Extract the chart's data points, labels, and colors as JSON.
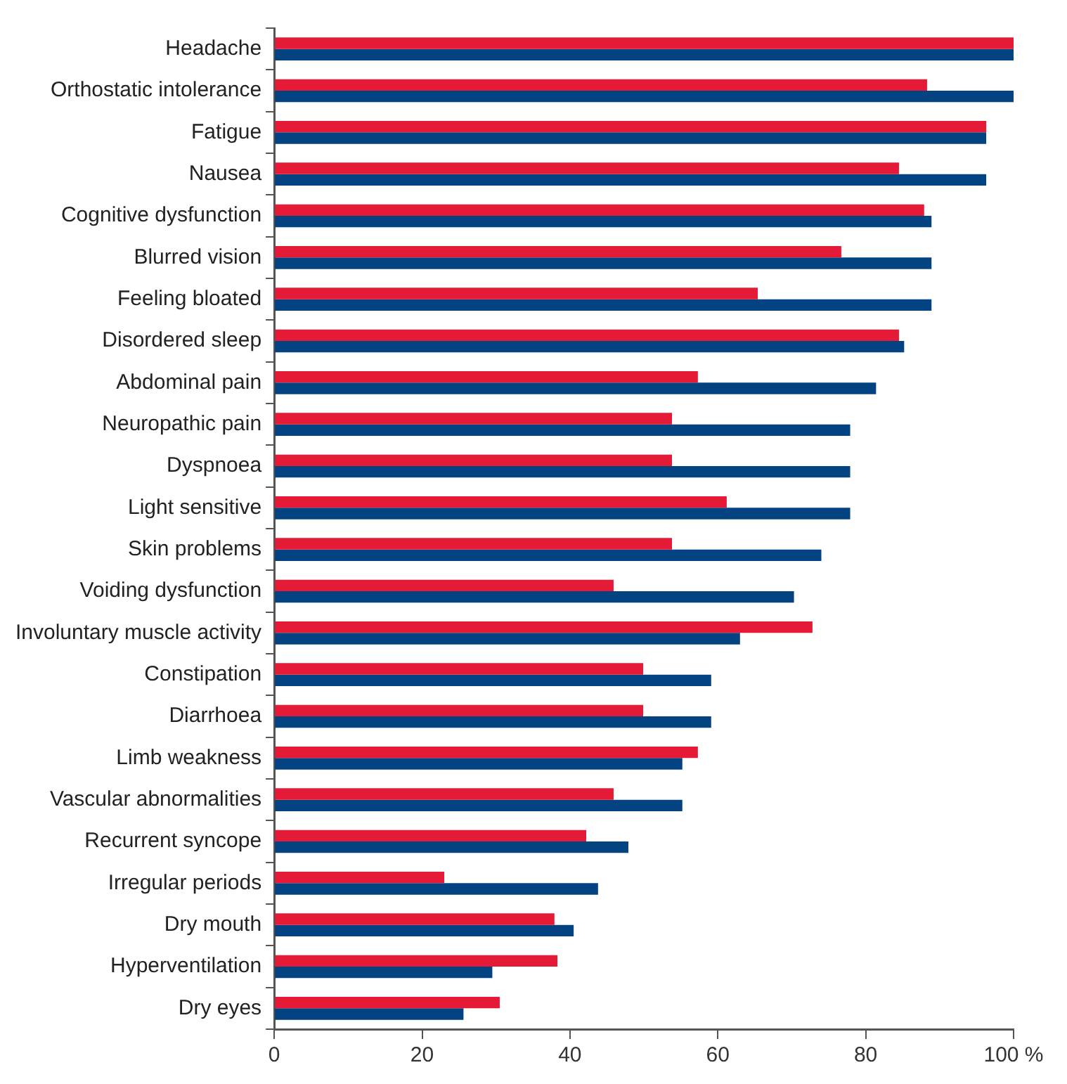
{
  "chart_data": {
    "type": "bar",
    "orientation": "horizontal",
    "categories": [
      "Headache",
      "Orthostatic intolerance",
      "Fatigue",
      "Nausea",
      "Cognitive dysfunction",
      "Blurred vision",
      "Feeling bloated",
      "Disordered sleep",
      "Abdominal pain",
      "Neuropathic pain",
      "Dyspnoea",
      "Light sensitive",
      "Skin problems",
      "Voiding dysfunction",
      "Involuntary muscle activity",
      "Constipation",
      "Diarrhoea",
      "Limb weakness",
      "Vascular abnormalities",
      "Recurrent syncope",
      "Irregular periods",
      "Dry mouth",
      "Hyperventilation",
      "Dry eyes"
    ],
    "series": [
      {
        "color": "#e41a36",
        "values": [
          100,
          88.3,
          96.3,
          84.5,
          87.9,
          76.7,
          65.4,
          84.5,
          57.3,
          53.8,
          53.8,
          61.2,
          53.8,
          45.9,
          72.8,
          49.9,
          49.9,
          57.3,
          45.9,
          42.2,
          23.0,
          37.9,
          38.3,
          30.5
        ]
      },
      {
        "color": "#034382",
        "values": [
          100,
          100,
          96.3,
          96.3,
          88.9,
          88.9,
          88.9,
          85.2,
          81.4,
          77.9,
          77.9,
          77.9,
          74.0,
          70.3,
          63.0,
          59.1,
          59.1,
          55.2,
          55.2,
          47.9,
          43.8,
          40.5,
          29.5,
          25.6
        ]
      }
    ],
    "xlim": [
      0,
      100
    ],
    "xticks": [
      0,
      20,
      40,
      60,
      80,
      {
        "value": 100,
        "label": "100 %"
      }
    ],
    "grid": false,
    "legend": false
  }
}
